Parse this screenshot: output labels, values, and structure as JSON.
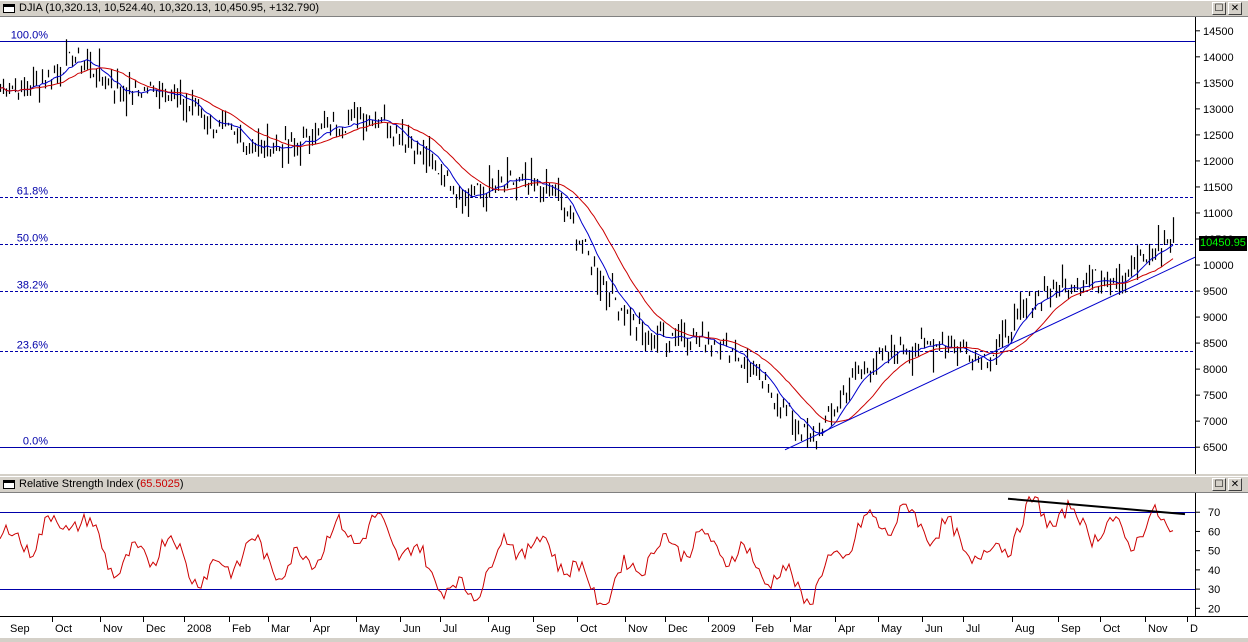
{
  "top_panel": {
    "title": "DJIA (10,320.13, 10,524.40, 10,320.13, 10,450.95, +132.790)",
    "last_price_label": "10450.95",
    "price_axis_labels": [
      "14500",
      "14000",
      "13500",
      "13000",
      "12500",
      "12000",
      "11500",
      "11000",
      "10500",
      "10000",
      "9500",
      "9000",
      "8500",
      "8000",
      "7500",
      "7000",
      "6500"
    ],
    "fib_labels": [
      "100.0%",
      "61.8%",
      "50.0%",
      "38.2%",
      "23.6%",
      "0.0%"
    ]
  },
  "bottom_panel": {
    "title_prefix": "Relative Strength Index (",
    "title_value": "65.5025",
    "title_suffix": ")",
    "rsi_axis_labels": [
      "70",
      "60",
      "50",
      "40",
      "30",
      "20"
    ]
  },
  "window_buttons": {
    "restore": "☐",
    "close": "✕"
  },
  "x_axis_labels": [
    "Sep",
    "Oct",
    "Nov",
    "Dec",
    "2008",
    "Feb",
    "Mar",
    "Apr",
    "May",
    "Jun",
    "Jul",
    "Aug",
    "Sep",
    "Oct",
    "Nov",
    "Dec",
    "2009",
    "Feb",
    "Mar",
    "Apr",
    "May",
    "Jun",
    "Jul",
    "Aug",
    "Sep",
    "Oct",
    "Nov",
    "D"
  ],
  "colors": {
    "price_bars": "#000000",
    "ma_short": "#0000cc",
    "ma_long": "#cc0000",
    "fib_lines": "#0000aa",
    "trendline": "#0000cc",
    "rsi_line": "#cc0000",
    "divergence_line": "#000000",
    "last_price_bg": "#000000",
    "last_price_text": "#00ff00"
  },
  "chart_data": [
    {
      "type": "line",
      "title": "DJIA",
      "description_series": "daily price (close)",
      "x": [
        "2007-09",
        "2007-10",
        "2007-11",
        "2007-12",
        "2008-01",
        "2008-02",
        "2008-03",
        "2008-04",
        "2008-05",
        "2008-06",
        "2008-07",
        "2008-08",
        "2008-09",
        "2008-10",
        "2008-11",
        "2008-12",
        "2009-01",
        "2009-02",
        "2009-03",
        "2009-04",
        "2009-05",
        "2009-06",
        "2009-07",
        "2009-08",
        "2009-09",
        "2009-10",
        "2009-11"
      ],
      "series": [
        {
          "values": [
            13400,
            14000,
            13300,
            13400,
            12800,
            12300,
            12250,
            12700,
            12900,
            12200,
            11300,
            11600,
            11400,
            9700,
            8600,
            8700,
            8400,
            7500,
            6600,
            7900,
            8400,
            8500,
            8200,
            9400,
            9700,
            9800,
            10450
          ]
        }
      ],
      "fibonacci_levels": [
        {
          "label": "100.0%",
          "value": 14300
        },
        {
          "label": "61.8%",
          "value": 11300
        },
        {
          "label": "50.0%",
          "value": 10400
        },
        {
          "label": "38.2%",
          "value": 9500
        },
        {
          "label": "23.6%",
          "value": 8350
        },
        {
          "label": "0.0%",
          "value": 6500
        }
      ],
      "ylim": [
        6100,
        14650
      ]
    },
    {
      "type": "line",
      "title": "Relative Strength Index",
      "last_value": 65.5025,
      "x": [
        "2007-09",
        "2007-10",
        "2007-11",
        "2007-12",
        "2008-01",
        "2008-02",
        "2008-03",
        "2008-04",
        "2008-05",
        "2008-06",
        "2008-07",
        "2008-08",
        "2008-09",
        "2008-10",
        "2008-11",
        "2008-12",
        "2009-01",
        "2009-02",
        "2009-03",
        "2009-04",
        "2009-05",
        "2009-06",
        "2009-07",
        "2009-08",
        "2009-09",
        "2009-10",
        "2009-11"
      ],
      "series": [
        {
          "values": [
            55,
            68,
            40,
            55,
            35,
            52,
            40,
            58,
            62,
            45,
            25,
            55,
            50,
            25,
            48,
            55,
            50,
            38,
            28,
            60,
            68,
            60,
            45,
            72,
            65,
            58,
            65
          ]
        }
      ],
      "reference_lines": [
        70,
        30
      ],
      "ylim": [
        16,
        80
      ]
    }
  ]
}
